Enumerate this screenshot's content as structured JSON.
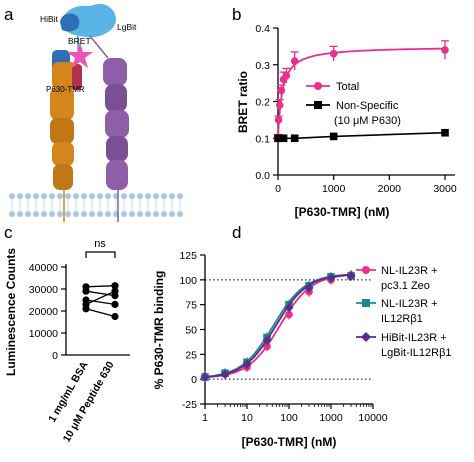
{
  "panel_letters": {
    "a": "a",
    "b": "b",
    "c": "c",
    "d": "d"
  },
  "schematic": {
    "labels": {
      "hibit": "HiBit",
      "lgbit": "LgBit",
      "bret": "BRET",
      "p630": "P630-TMR"
    },
    "colors": {
      "lgbit": "#5ab4e5",
      "hibit": "#2f6fb7",
      "tmr_star": "#e857b8",
      "il23r": "#d4861c",
      "il12rb1": "#8e5ea9",
      "p630_ligand": "#b2304e",
      "membrane": "#a9c7e6"
    }
  },
  "chart_data": [
    {
      "id": "b",
      "type": "line",
      "xlabel": "[P630-TMR] (nM)",
      "ylabel": "BRET ratio",
      "xlim": [
        0,
        3000
      ],
      "ylim": [
        0,
        0.4
      ],
      "x_ticks": [
        "0",
        "1000",
        "2000",
        "3000"
      ],
      "y_ticks": [
        "0.0",
        "0.1",
        "0.2",
        "0.3",
        "0.4"
      ],
      "grid": false,
      "legend_position": "right",
      "series": [
        {
          "name": "Total",
          "color": "#e8308a",
          "marker": "circle",
          "x": [
            0,
            10,
            30,
            60,
            100,
            150,
            300,
            1000,
            3000
          ],
          "y": [
            0.1,
            0.15,
            0.19,
            0.23,
            0.26,
            0.27,
            0.31,
            0.33,
            0.34
          ],
          "err": [
            0.01,
            0.01,
            0.015,
            0.015,
            0.02,
            0.02,
            0.025,
            0.02,
            0.025
          ]
        },
        {
          "name": "Non-Specific",
          "name_line2": "(10 μM P630)",
          "color": "#000000",
          "marker": "square",
          "x": [
            0,
            10,
            30,
            100,
            300,
            1000,
            3000
          ],
          "y": [
            0.1,
            0.1,
            0.1,
            0.1,
            0.1,
            0.105,
            0.115
          ]
        }
      ]
    },
    {
      "id": "c",
      "type": "scatter",
      "ylabel": "Luminescence Counts",
      "categories": [
        "1 mg/mL BSA",
        "10 μM Peptide 630"
      ],
      "ylim": [
        0,
        40000
      ],
      "y_ticks": [
        "0",
        "10000",
        "20000",
        "30000",
        "40000"
      ],
      "significance": "ns",
      "pairs": [
        [
          31000,
          31500
        ],
        [
          29000,
          27000
        ],
        [
          23000,
          29000
        ],
        [
          25000,
          23000
        ],
        [
          21000,
          17500
        ]
      ]
    },
    {
      "id": "d",
      "type": "line",
      "xlabel": "[P630-TMR] (nM)",
      "ylabel": "% P630-TMR binding",
      "xscale": "log",
      "xlim": [
        1,
        10000
      ],
      "ylim": [
        -25,
        125
      ],
      "x_ticks": [
        "1",
        "10",
        "100",
        "1000",
        "10000"
      ],
      "y_ticks": [
        "-25",
        "0",
        "25",
        "50",
        "75",
        "100",
        "125"
      ],
      "reference_lines": [
        0,
        100
      ],
      "legend_position": "right",
      "series": [
        {
          "name": "NL-IL23R +",
          "name_line2": "pc3.1 Zeo",
          "color": "#e8308a",
          "marker": "circle",
          "x": [
            1,
            3,
            10,
            30,
            100,
            300,
            1000,
            3000
          ],
          "y": [
            3,
            5,
            12,
            33,
            65,
            88,
            100,
            105
          ]
        },
        {
          "name": "NL-IL23R +",
          "name_line2": "IL12Rβ1",
          "color": "#1e8a8a",
          "marker": "square",
          "x": [
            1,
            3,
            10,
            30,
            100,
            300,
            1000,
            3000
          ],
          "y": [
            2,
            6,
            17,
            42,
            75,
            94,
            103,
            104
          ]
        },
        {
          "name": "HiBit-IL23R +",
          "name_line2": "LgBit-IL12Rβ1",
          "color": "#5b2a8c",
          "marker": "diamond",
          "x": [
            1,
            3,
            10,
            30,
            100,
            300,
            1000,
            3000
          ],
          "y": [
            2,
            5,
            15,
            39,
            72,
            92,
            102,
            104
          ]
        }
      ]
    }
  ]
}
